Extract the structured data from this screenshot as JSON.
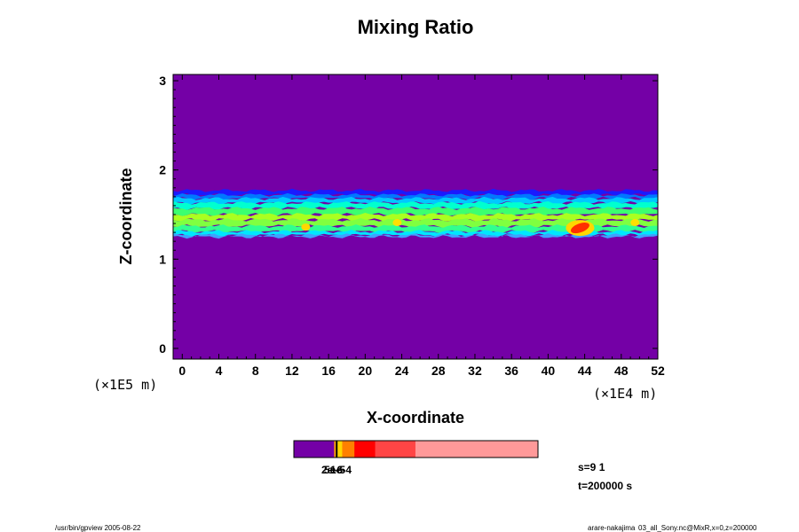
{
  "chart_data": {
    "type": "heatmap",
    "title": "Mixing Ratio",
    "xlabel": "X-coordinate",
    "ylabel": "Z-coordinate",
    "x_unit": "(×1E4 m)",
    "y_unit": "(×1E5 m)",
    "xlim": [
      -1,
      52
    ],
    "ylim": [
      -0.12,
      3.07
    ],
    "x_ticks": [
      0,
      4,
      8,
      12,
      16,
      20,
      24,
      28,
      32,
      36,
      40,
      44,
      48,
      52
    ],
    "y_ticks": [
      0,
      1,
      2,
      3
    ],
    "background_value_color": "#7400a6",
    "layer_band": {
      "z_bottom": 1.27,
      "z_top": 1.77,
      "profile_from_top": [
        {
          "z": 1.77,
          "color": "#1a1aff"
        },
        {
          "z": 1.72,
          "color": "#0078ff"
        },
        {
          "z": 1.68,
          "color": "#00c8ff"
        },
        {
          "z": 1.63,
          "color": "#00ffd0"
        },
        {
          "z": 1.57,
          "color": "#3cff70"
        },
        {
          "z": 1.5,
          "color": "#aaff20"
        },
        {
          "z": 1.44,
          "color": "#80ff40"
        },
        {
          "z": 1.37,
          "color": "#30ff90"
        },
        {
          "z": 1.31,
          "color": "#00e6ff"
        },
        {
          "z": 1.27,
          "color": "#40a0ff"
        }
      ],
      "hotspots": [
        {
          "x": 43.5,
          "z": 1.35,
          "color": "#ff5000"
        },
        {
          "x": 13.5,
          "z": 1.36,
          "color": "#ffd700"
        },
        {
          "x": 23.5,
          "z": 1.41,
          "color": "#ffe000"
        },
        {
          "x": 49.5,
          "z": 1.41,
          "color": "#ffe000"
        }
      ]
    },
    "colorbar": {
      "segments": [
        {
          "frac": 0.165,
          "color": "#7400a6"
        },
        {
          "frac": 0.007,
          "color": "#ffa500"
        },
        {
          "frac": 0.007,
          "color": "#000000"
        },
        {
          "frac": 0.019,
          "color": "#ffd700"
        },
        {
          "frac": 0.05,
          "color": "#ff8000"
        },
        {
          "frac": 0.085,
          "color": "#ff0000"
        },
        {
          "frac": 0.165,
          "color": "#ff4545"
        },
        {
          "frac": 0.502,
          "color": "#ff9999"
        }
      ],
      "labels": [
        "2e-6",
        "5e-5",
        "1e-4"
      ]
    },
    "stats": [
      "s=9 1",
      "t=200000 s"
    ]
  },
  "footer": {
    "left": "/usr/bin/gpview 2005-08-22",
    "right_user": "arare-nakajima",
    "right_small": "03_all_Sony.nc@MixR,x=0,z=200000"
  }
}
